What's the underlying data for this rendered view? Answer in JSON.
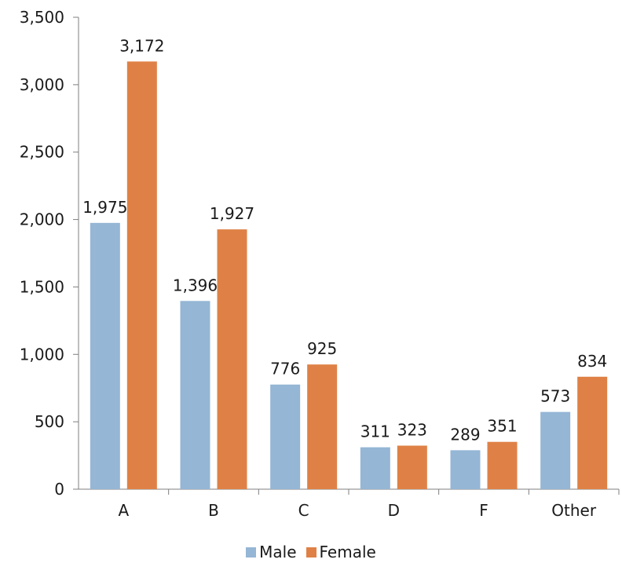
{
  "chart_data": {
    "type": "bar",
    "categories": [
      "A",
      "B",
      "C",
      "D",
      "F",
      "Other"
    ],
    "series": [
      {
        "name": "Male",
        "color": "#95b6d5",
        "values": [
          1975,
          1396,
          776,
          311,
          289,
          573
        ],
        "labels": [
          "1,975",
          "1,396",
          "776",
          "311",
          "289",
          "573"
        ]
      },
      {
        "name": "Female",
        "color": "#df8146",
        "values": [
          3172,
          1927,
          925,
          323,
          351,
          834
        ],
        "labels": [
          "3,172",
          "1,927",
          "925",
          "323",
          "351",
          "834"
        ]
      }
    ],
    "ylim": [
      0,
      3500
    ],
    "yticks": [
      0,
      500,
      1000,
      1500,
      2000,
      2500,
      3000,
      3500
    ],
    "ytick_labels": [
      "0",
      "500",
      "1,000",
      "1,500",
      "2,000",
      "2,500",
      "3,000",
      "3,500"
    ],
    "grid": false,
    "legend_position": "bottom"
  }
}
